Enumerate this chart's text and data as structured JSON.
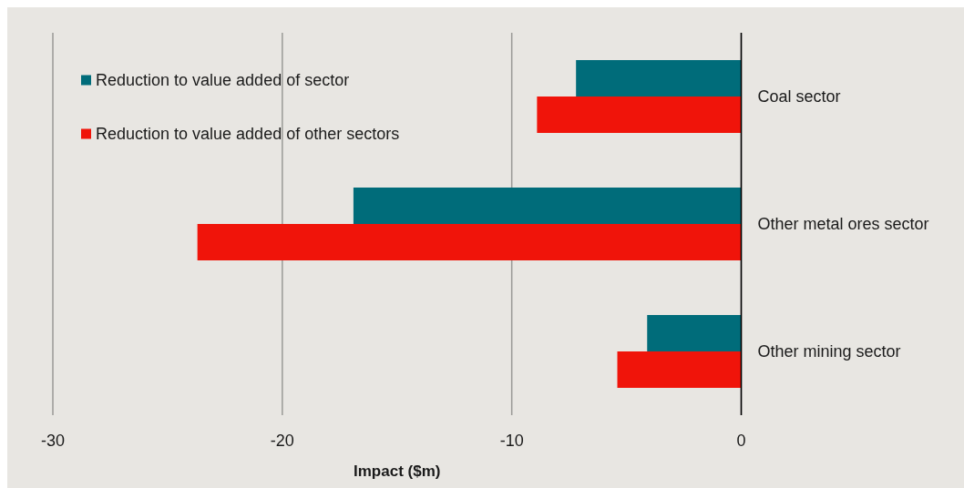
{
  "chart_data": {
    "type": "bar",
    "orientation": "horizontal",
    "xlabel": "Impact ($m)",
    "categories": [
      "Coal sector",
      "Other metal ores sector",
      "Other mining sector"
    ],
    "series": [
      {
        "name": "Reduction to value added of sector",
        "color": "#006c7a",
        "values": [
          -7.2,
          -16.9,
          -4.1
        ]
      },
      {
        "name": "Reduction to value added of other sectors",
        "color": "#f0140a",
        "values": [
          -8.9,
          -23.7,
          -5.4
        ]
      }
    ],
    "xlim": [
      -30,
      0
    ],
    "xticks": [
      -30,
      -20,
      -10,
      0
    ],
    "grid": "x",
    "legend": "top left"
  }
}
